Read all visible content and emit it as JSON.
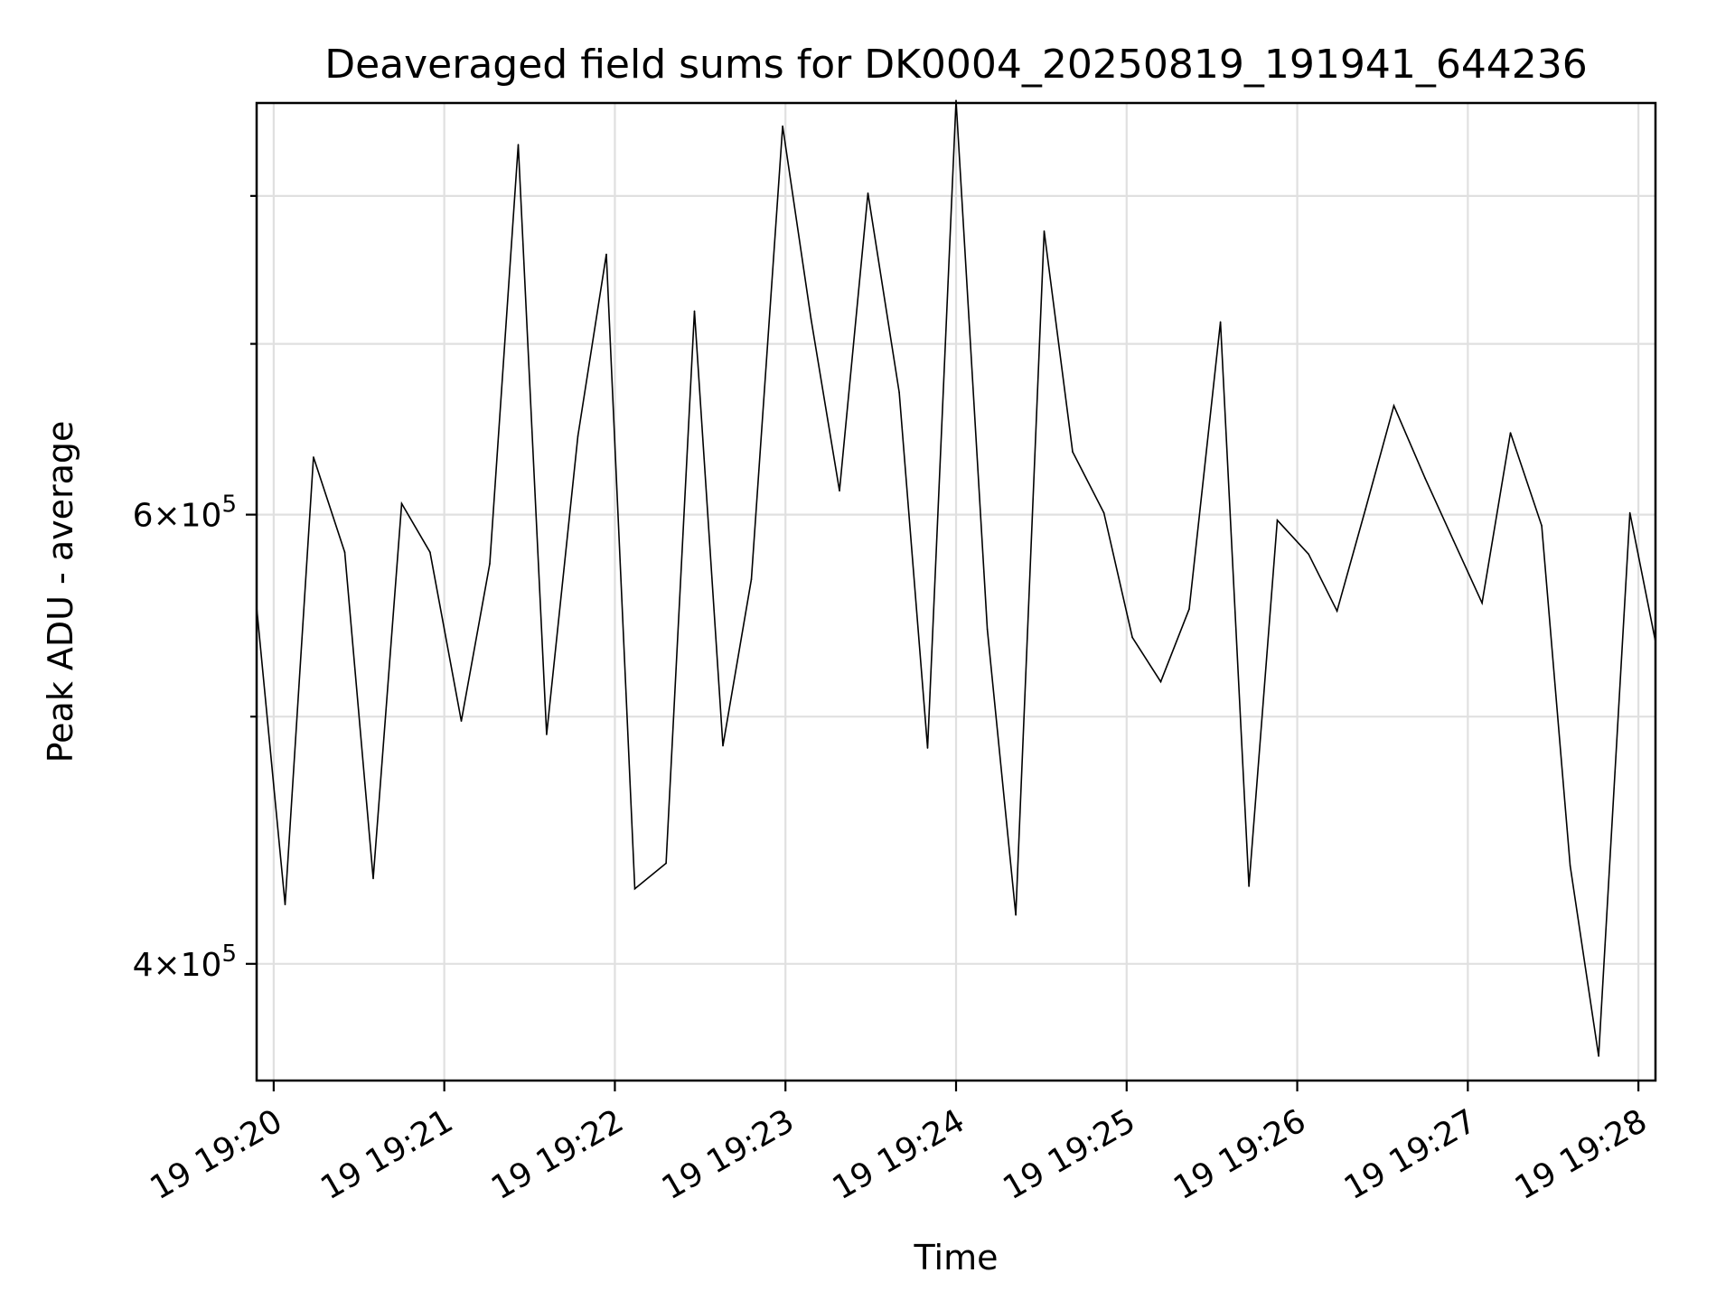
{
  "chart_data": {
    "type": "line",
    "title": "Deaveraged field sums for DK0004_20250819_191941_644236",
    "xlabel": "Time",
    "ylabel": "Peak ADU - average",
    "yscale": "log",
    "grid": true,
    "xlim": [
      "19:19:54",
      "19:28:06"
    ],
    "ylim": [
      360000,
      870000
    ],
    "x_ticks": [
      {
        "t": "19:20:00",
        "label": "19 19:20"
      },
      {
        "t": "19:21:00",
        "label": "19 19:21"
      },
      {
        "t": "19:22:00",
        "label": "19 19:22"
      },
      {
        "t": "19:23:00",
        "label": "19 19:23"
      },
      {
        "t": "19:24:00",
        "label": "19 19:24"
      },
      {
        "t": "19:25:00",
        "label": "19 19:25"
      },
      {
        "t": "19:26:00",
        "label": "19 19:26"
      },
      {
        "t": "19:27:00",
        "label": "19 19:27"
      },
      {
        "t": "19:28:00",
        "label": "19 19:28"
      }
    ],
    "y_major_ticks": [
      {
        "value": 400000,
        "mantissa": "4",
        "exponent": "5"
      },
      {
        "value": 600000,
        "mantissa": "6",
        "exponent": "5"
      }
    ],
    "y_minor_ticks": [
      500000,
      700000,
      800000
    ],
    "series": [
      {
        "color": "#000000",
        "times": [
          "19:19:54",
          "19:20:04",
          "19:20:14",
          "19:20:25",
          "19:20:35",
          "19:20:45",
          "19:20:55",
          "19:21:06",
          "19:21:16",
          "19:21:26",
          "19:21:36",
          "19:21:47",
          "19:21:57",
          "19:22:07",
          "19:22:18",
          "19:22:28",
          "19:22:38",
          "19:22:48",
          "19:22:59",
          "19:23:09",
          "19:23:19",
          "19:23:29",
          "19:23:40",
          "19:23:50",
          "19:24:00",
          "19:24:11",
          "19:24:21",
          "19:24:31",
          "19:24:41",
          "19:24:52",
          "19:25:02",
          "19:25:12",
          "19:25:22",
          "19:25:33",
          "19:25:43",
          "19:25:53",
          "19:26:04",
          "19:26:14",
          "19:26:24",
          "19:26:34",
          "19:26:45",
          "19:26:55",
          "19:27:05",
          "19:27:15",
          "19:27:26",
          "19:27:36",
          "19:27:46",
          "19:27:57",
          "19:28:06"
        ],
        "values": [
          552000,
          422000,
          632000,
          580000,
          432000,
          606000,
          580000,
          498000,
          574000,
          838000,
          492000,
          644000,
          759000,
          428000,
          438000,
          721000,
          487000,
          566000,
          852000,
          716000,
          613000,
          802000,
          670000,
          486000,
          872000,
          541000,
          418000,
          775000,
          635000,
          601000,
          537000,
          516000,
          551000,
          714000,
          429000,
          597000,
          579000,
          550000,
          603000,
          662000,
          620000,
          586000,
          554000,
          646000,
          594000,
          437000,
          368000,
          601000,
          535000
        ]
      }
    ]
  }
}
